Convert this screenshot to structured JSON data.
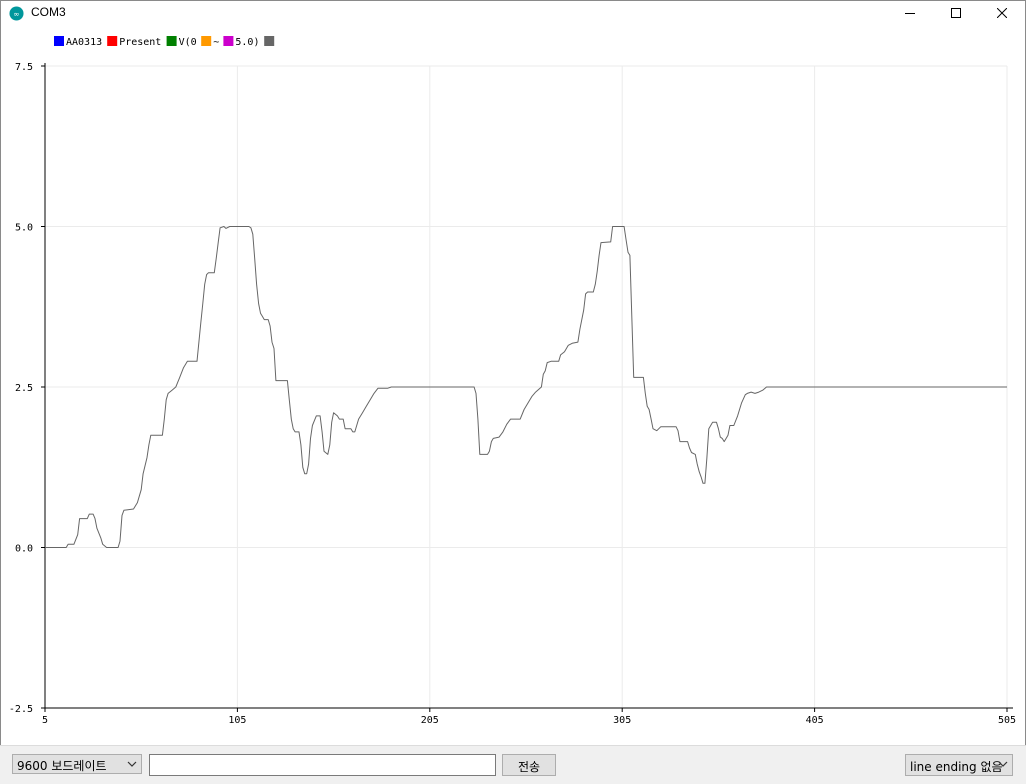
{
  "window": {
    "title": "COM3"
  },
  "colors": {
    "series_line": "#666666",
    "grid": "#ebebeb",
    "axis": "#000000",
    "app_icon": "#00979c"
  },
  "legend": [
    {
      "label": "AA0313",
      "color": "#0000ff"
    },
    {
      "label": "Present",
      "color": "#ff0000"
    },
    {
      "label": "V(0",
      "color": "#008000"
    },
    {
      "label": "~",
      "color": "#ff9900"
    },
    {
      "label": "5.0)",
      "color": "#cc00cc"
    },
    {
      "label": "",
      "color": "#666666"
    }
  ],
  "chart_data": {
    "type": "line",
    "xlim": [
      5,
      505
    ],
    "ylim": [
      -2.5,
      7.5
    ],
    "x_ticks": [
      "5",
      "105",
      "205",
      "305",
      "405",
      "505"
    ],
    "y_ticks": [
      "7.5",
      "5.0",
      "2.5",
      "0.0",
      "-2.5"
    ],
    "grid": true,
    "legend_position": "top-left",
    "series": [
      {
        "color": "#666666",
        "points": [
          [
            5,
            0
          ],
          [
            16,
            0
          ],
          [
            17,
            0.05
          ],
          [
            20,
            0.05
          ],
          [
            22,
            0.2
          ],
          [
            23,
            0.45
          ],
          [
            27,
            0.45
          ],
          [
            28,
            0.52
          ],
          [
            30,
            0.52
          ],
          [
            31,
            0.45
          ],
          [
            32,
            0.3
          ],
          [
            34,
            0.15
          ],
          [
            35,
            0.05
          ],
          [
            37,
            0
          ],
          [
            43,
            0
          ],
          [
            44,
            0.1
          ],
          [
            45,
            0.5
          ],
          [
            46,
            0.58
          ],
          [
            51,
            0.6
          ],
          [
            53,
            0.7
          ],
          [
            55,
            0.9
          ],
          [
            56,
            1.15
          ],
          [
            58,
            1.4
          ],
          [
            59,
            1.6
          ],
          [
            60,
            1.75
          ],
          [
            66,
            1.75
          ],
          [
            67,
            2.0
          ],
          [
            68,
            2.3
          ],
          [
            69,
            2.4
          ],
          [
            71,
            2.45
          ],
          [
            73,
            2.5
          ],
          [
            75,
            2.65
          ],
          [
            77,
            2.8
          ],
          [
            79,
            2.9
          ],
          [
            84,
            2.9
          ],
          [
            85,
            3.2
          ],
          [
            86,
            3.5
          ],
          [
            87,
            3.8
          ],
          [
            88,
            4.1
          ],
          [
            89,
            4.25
          ],
          [
            90,
            4.28
          ],
          [
            93,
            4.28
          ],
          [
            94,
            4.5
          ],
          [
            95,
            4.75
          ],
          [
            96,
            4.98
          ],
          [
            98,
            5.0
          ],
          [
            99,
            4.97
          ],
          [
            101,
            5.0
          ],
          [
            111,
            5.0
          ],
          [
            112,
            4.98
          ],
          [
            113,
            4.88
          ],
          [
            114,
            4.5
          ],
          [
            115,
            4.1
          ],
          [
            116,
            3.8
          ],
          [
            117,
            3.65
          ],
          [
            118,
            3.6
          ],
          [
            119,
            3.55
          ],
          [
            121,
            3.55
          ],
          [
            122,
            3.45
          ],
          [
            123,
            3.2
          ],
          [
            124,
            3.1
          ],
          [
            125,
            2.6
          ],
          [
            131,
            2.6
          ],
          [
            132,
            2.3
          ],
          [
            133,
            2.0
          ],
          [
            134,
            1.85
          ],
          [
            135,
            1.8
          ],
          [
            137,
            1.8
          ],
          [
            138,
            1.6
          ],
          [
            139,
            1.25
          ],
          [
            140,
            1.15
          ],
          [
            141,
            1.15
          ],
          [
            142,
            1.3
          ],
          [
            143,
            1.7
          ],
          [
            144,
            1.9
          ],
          [
            146,
            2.05
          ],
          [
            148,
            2.05
          ],
          [
            149,
            1.8
          ],
          [
            150,
            1.5
          ],
          [
            152,
            1.45
          ],
          [
            153,
            1.6
          ],
          [
            154,
            1.95
          ],
          [
            155,
            2.1
          ],
          [
            157,
            2.05
          ],
          [
            158,
            2.0
          ],
          [
            160,
            2.0
          ],
          [
            161,
            1.85
          ],
          [
            164,
            1.85
          ],
          [
            165,
            1.8
          ],
          [
            166,
            1.8
          ],
          [
            168,
            2.0
          ],
          [
            170,
            2.1
          ],
          [
            172,
            2.2
          ],
          [
            174,
            2.3
          ],
          [
            176,
            2.4
          ],
          [
            178,
            2.48
          ],
          [
            183,
            2.48
          ],
          [
            185,
            2.5
          ],
          [
            228,
            2.5
          ],
          [
            229,
            2.4
          ],
          [
            230,
            2.0
          ],
          [
            231,
            1.45
          ],
          [
            235,
            1.45
          ],
          [
            236,
            1.5
          ],
          [
            237,
            1.65
          ],
          [
            238,
            1.7
          ],
          [
            241,
            1.72
          ],
          [
            243,
            1.8
          ],
          [
            245,
            1.92
          ],
          [
            247,
            2.0
          ],
          [
            252,
            2.0
          ],
          [
            254,
            2.15
          ],
          [
            256,
            2.25
          ],
          [
            258,
            2.35
          ],
          [
            260,
            2.42
          ],
          [
            263,
            2.5
          ],
          [
            264,
            2.7
          ],
          [
            265,
            2.75
          ],
          [
            266,
            2.88
          ],
          [
            268,
            2.9
          ],
          [
            272,
            2.9
          ],
          [
            273,
            3.0
          ],
          [
            275,
            3.05
          ],
          [
            277,
            3.15
          ],
          [
            279,
            3.18
          ],
          [
            282,
            3.2
          ],
          [
            283,
            3.4
          ],
          [
            285,
            3.7
          ],
          [
            286,
            3.95
          ],
          [
            287,
            3.98
          ],
          [
            290,
            3.98
          ],
          [
            291,
            4.1
          ],
          [
            292,
            4.3
          ],
          [
            293,
            4.55
          ],
          [
            294,
            4.75
          ],
          [
            299,
            4.76
          ],
          [
            300,
            5.0
          ],
          [
            306,
            5.0
          ],
          [
            307,
            4.8
          ],
          [
            308,
            4.6
          ],
          [
            309,
            4.55
          ],
          [
            310,
            3.6
          ],
          [
            311,
            2.65
          ],
          [
            316,
            2.65
          ],
          [
            317,
            2.4
          ],
          [
            318,
            2.2
          ],
          [
            319,
            2.15
          ],
          [
            320,
            2.0
          ],
          [
            321,
            1.85
          ],
          [
            323,
            1.82
          ],
          [
            325,
            1.88
          ],
          [
            333,
            1.88
          ],
          [
            334,
            1.82
          ],
          [
            335,
            1.65
          ],
          [
            339,
            1.65
          ],
          [
            340,
            1.55
          ],
          [
            341,
            1.48
          ],
          [
            343,
            1.45
          ],
          [
            344,
            1.3
          ],
          [
            345,
            1.18
          ],
          [
            346,
            1.1
          ],
          [
            347,
            1.0
          ],
          [
            348,
            1.0
          ],
          [
            349,
            1.4
          ],
          [
            350,
            1.85
          ],
          [
            352,
            1.95
          ],
          [
            354,
            1.95
          ],
          [
            355,
            1.85
          ],
          [
            356,
            1.72
          ],
          [
            357,
            1.7
          ],
          [
            358,
            1.65
          ],
          [
            360,
            1.75
          ],
          [
            361,
            1.9
          ],
          [
            363,
            1.9
          ],
          [
            365,
            2.05
          ],
          [
            367,
            2.25
          ],
          [
            369,
            2.38
          ],
          [
            370,
            2.4
          ],
          [
            372,
            2.42
          ],
          [
            374,
            2.4
          ],
          [
            376,
            2.42
          ],
          [
            378,
            2.45
          ],
          [
            380,
            2.5
          ],
          [
            505,
            2.5
          ]
        ]
      }
    ]
  },
  "bottom": {
    "baud_label": "9600 보드레이트",
    "send_value": "",
    "send_label": "전송",
    "line_ending_label": "line ending 없음"
  }
}
